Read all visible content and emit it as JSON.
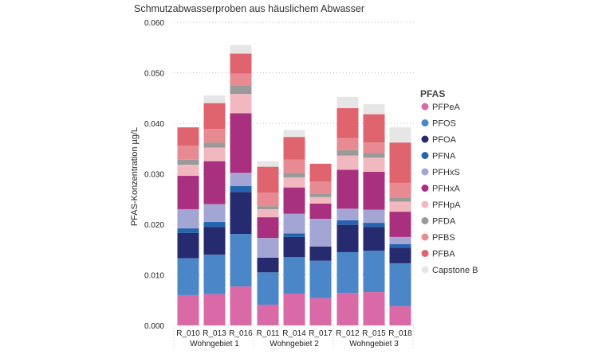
{
  "chart_data": {
    "type": "stacked-bar",
    "title": "Schmutzabwasserproben aus häuslichem Abwasser",
    "ylabel": "PFAS-Konzentration µg/L",
    "xlabel": "",
    "ylim": [
      0,
      0.06
    ],
    "yticks": [
      "0.000",
      "0.010",
      "0.020",
      "0.030",
      "0.040",
      "0.050",
      "0.060"
    ],
    "grid": true,
    "legend_title": "PFAS",
    "legend_position": "right",
    "groups": [
      {
        "label": "Wohngebiet 1",
        "categories": [
          "R_010",
          "R_013",
          "R_016"
        ]
      },
      {
        "label": "Wohngebiet 2",
        "categories": [
          "R_011",
          "R_014",
          "R_017"
        ]
      },
      {
        "label": "Wohngebiet 3",
        "categories": [
          "R_012",
          "R_015",
          "R_018"
        ]
      }
    ],
    "categories": [
      "R_010",
      "R_013",
      "R_016",
      "R_011",
      "R_014",
      "R_017",
      "R_012",
      "R_015",
      "R_018"
    ],
    "series": [
      {
        "name": "PFPeA",
        "color": "#d96aa7",
        "values": [
          0.006,
          0.0062,
          0.0077,
          0.0041,
          0.0063,
          0.0054,
          0.0064,
          0.0066,
          0.0038
        ]
      },
      {
        "name": "PFOS",
        "color": "#4a86c8",
        "values": [
          0.0073,
          0.0078,
          0.0104,
          0.0064,
          0.0072,
          0.0074,
          0.0081,
          0.0082,
          0.0085
        ]
      },
      {
        "name": "PFOA",
        "color": "#262a6e",
        "values": [
          0.005,
          0.0055,
          0.0083,
          0.0029,
          0.004,
          0.0028,
          0.0054,
          0.0047,
          0.0031
        ]
      },
      {
        "name": "PFNA",
        "color": "#2565ae",
        "values": [
          0.0009,
          0.001,
          0.0012,
          0.0,
          0.0007,
          0.0,
          0.0009,
          0.0008,
          0.0007
        ]
      },
      {
        "name": "PFHxS",
        "color": "#a3a6d4",
        "values": [
          0.0038,
          0.0035,
          0.0026,
          0.0039,
          0.0039,
          0.0055,
          0.0023,
          0.0026,
          0.0014
        ]
      },
      {
        "name": "PFHxA",
        "color": "#a8307e",
        "values": [
          0.0066,
          0.0085,
          0.0118,
          0.0041,
          0.0052,
          0.003,
          0.0077,
          0.0075,
          0.005
        ]
      },
      {
        "name": "PFHpA",
        "color": "#f2b8c0",
        "values": [
          0.0022,
          0.0027,
          0.0038,
          0.0016,
          0.002,
          0.0013,
          0.0028,
          0.0028,
          0.002
        ]
      },
      {
        "name": "PFDA",
        "color": "#9a9a9a",
        "values": [
          0.001,
          0.001,
          0.0016,
          0.0006,
          0.0009,
          0.0007,
          0.0011,
          0.0009,
          0.0007
        ]
      },
      {
        "name": "PFBS",
        "color": "#e88a92",
        "values": [
          0.0028,
          0.0027,
          0.0024,
          0.0027,
          0.0026,
          0.0024,
          0.0024,
          0.0021,
          0.003
        ]
      },
      {
        "name": "PFBA",
        "color": "#e0646e",
        "values": [
          0.0036,
          0.0051,
          0.004,
          0.0051,
          0.0045,
          0.0035,
          0.0059,
          0.0056,
          0.008
        ]
      },
      {
        "name": "Capstone B",
        "color": "#e6e6e6",
        "values": [
          0.0,
          0.0015,
          0.0017,
          0.0011,
          0.0014,
          0.0,
          0.0022,
          0.002,
          0.003
        ]
      }
    ]
  }
}
